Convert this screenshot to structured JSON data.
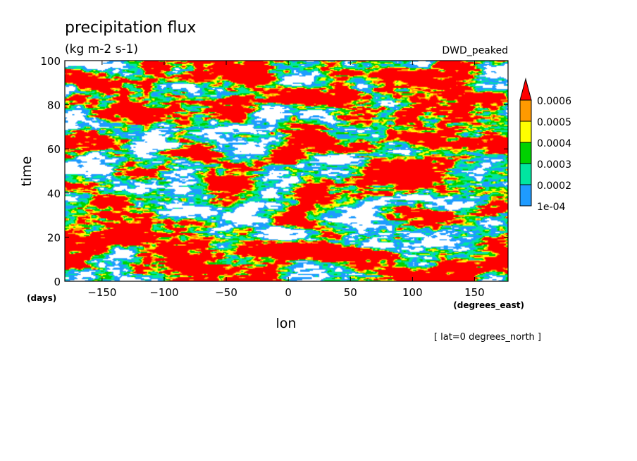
{
  "chart_data": {
    "type": "heatmap",
    "title": "precipitation flux",
    "units": "(kg m-2 s-1)",
    "dataset_label": "DWD_peaked",
    "xlabel": "lon",
    "x_units": "(degrees_east)",
    "ylabel": "time",
    "y_units": "(days)",
    "footnote": "[ lat=0 degrees_north ]",
    "xlim": [
      -180,
      177
    ],
    "ylim": [
      0,
      100
    ],
    "x_ticks": [
      -150,
      -100,
      -50,
      0,
      50,
      100,
      150
    ],
    "x_tick_labels": [
      "−150",
      "−100",
      "−50",
      "0",
      "50",
      "100",
      "150"
    ],
    "y_ticks": [
      0,
      20,
      40,
      60,
      80,
      100
    ],
    "y_tick_labels": [
      "0",
      "20",
      "40",
      "60",
      "80",
      "100"
    ],
    "colorbar": {
      "levels": [
        0.0001,
        0.0002,
        0.0003,
        0.0004,
        0.0005,
        0.0006
      ],
      "level_labels": [
        "1e-04",
        "0.0002",
        "0.0003",
        "0.0004",
        "0.0005",
        "0.0006"
      ],
      "colors": [
        "#ffffff",
        "#1e9bff",
        "#00e6a0",
        "#00d200",
        "#ffff00",
        "#ff9a00",
        "#ff0000"
      ],
      "extend": "max"
    },
    "field_description": "Hovmoller diagram of equatorial precipitation flux; patchy eastward-propagating bands, red (>=0.0006) dominant, white regions below 1e-04."
  }
}
